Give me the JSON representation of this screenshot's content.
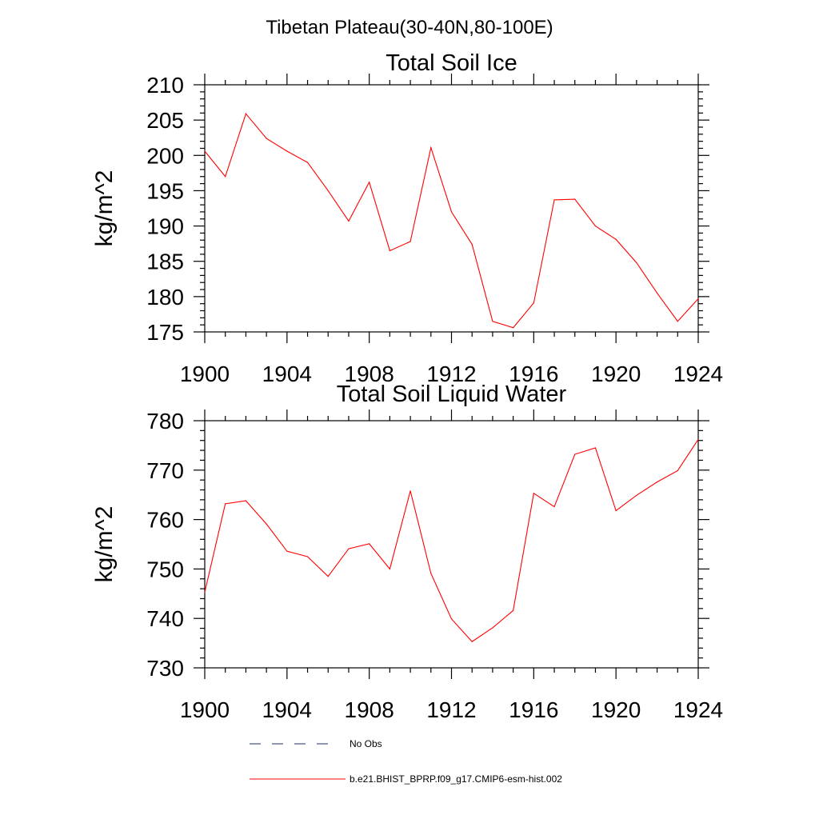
{
  "suptitle": "Tibetan Plateau(30-40N,80-100E)",
  "chart_data": [
    {
      "type": "line",
      "title": "Total Soil Ice",
      "xlabel": "",
      "ylabel": "kg/m^2",
      "xlim": [
        1900,
        1924
      ],
      "ylim": [
        175,
        210
      ],
      "x_ticks": [
        1900,
        1904,
        1908,
        1912,
        1916,
        1920,
        1924
      ],
      "x_tick_labels": [
        "1900",
        "1904",
        "1908",
        "1912",
        "1916",
        "1920",
        "1924"
      ],
      "y_ticks": [
        175,
        180,
        185,
        190,
        195,
        200,
        205,
        210
      ],
      "y_tick_labels": [
        "175",
        "180",
        "185",
        "190",
        "195",
        "200",
        "205",
        "210"
      ],
      "grid": false,
      "series": [
        {
          "name": "b.e21.BHIST_BPRP.f09_g17.CMIP6-esm-hist.002",
          "color": "#ff0000",
          "x": [
            1900,
            1901,
            1902,
            1903,
            1904,
            1905,
            1906,
            1907,
            1908,
            1909,
            1910,
            1911,
            1912,
            1913,
            1914,
            1915,
            1916,
            1917,
            1918,
            1919,
            1920,
            1921,
            1922,
            1923,
            1924
          ],
          "values": [
            200.6,
            197.0,
            205.9,
            202.4,
            200.6,
            199.0,
            195.0,
            190.7,
            196.2,
            186.5,
            187.8,
            201.1,
            192.0,
            187.4,
            176.5,
            175.6,
            179.1,
            193.7,
            193.8,
            190.0,
            188.1,
            184.8,
            180.5,
            176.5,
            179.7
          ]
        }
      ]
    },
    {
      "type": "line",
      "title": "Total Soil Liquid Water",
      "xlabel": "",
      "ylabel": "kg/m^2",
      "xlim": [
        1900,
        1924
      ],
      "ylim": [
        730,
        780
      ],
      "x_ticks": [
        1900,
        1904,
        1908,
        1912,
        1916,
        1920,
        1924
      ],
      "x_tick_labels": [
        "1900",
        "1904",
        "1908",
        "1912",
        "1916",
        "1920",
        "1924"
      ],
      "y_ticks": [
        730,
        740,
        750,
        760,
        770,
        780
      ],
      "y_tick_labels": [
        "730",
        "740",
        "750",
        "760",
        "770",
        "780"
      ],
      "grid": false,
      "series": [
        {
          "name": "b.e21.BHIST_BPRP.f09_g17.CMIP6-esm-hist.002",
          "color": "#ff0000",
          "x": [
            1900,
            1901,
            1902,
            1903,
            1904,
            1905,
            1906,
            1907,
            1908,
            1909,
            1910,
            1911,
            1912,
            1913,
            1914,
            1915,
            1916,
            1917,
            1918,
            1919,
            1920,
            1921,
            1922,
            1923,
            1924
          ],
          "values": [
            745.3,
            763.2,
            763.8,
            759.1,
            753.6,
            752.5,
            748.5,
            754.1,
            755.1,
            750.0,
            765.8,
            749.1,
            739.9,
            735.3,
            738.1,
            741.6,
            765.3,
            762.6,
            773.2,
            774.5,
            761.8,
            764.9,
            767.6,
            769.9,
            776.2
          ]
        }
      ]
    }
  ],
  "legend": {
    "placement": "bottom-center",
    "entries": [
      {
        "label": "No Obs",
        "color": "#1f2f6f",
        "dash": "dashed"
      },
      {
        "label": "b.e21.BHIST_BPRP.f09_g17.CMIP6-esm-hist.002",
        "color": "#ff0000",
        "dash": "solid"
      }
    ]
  }
}
